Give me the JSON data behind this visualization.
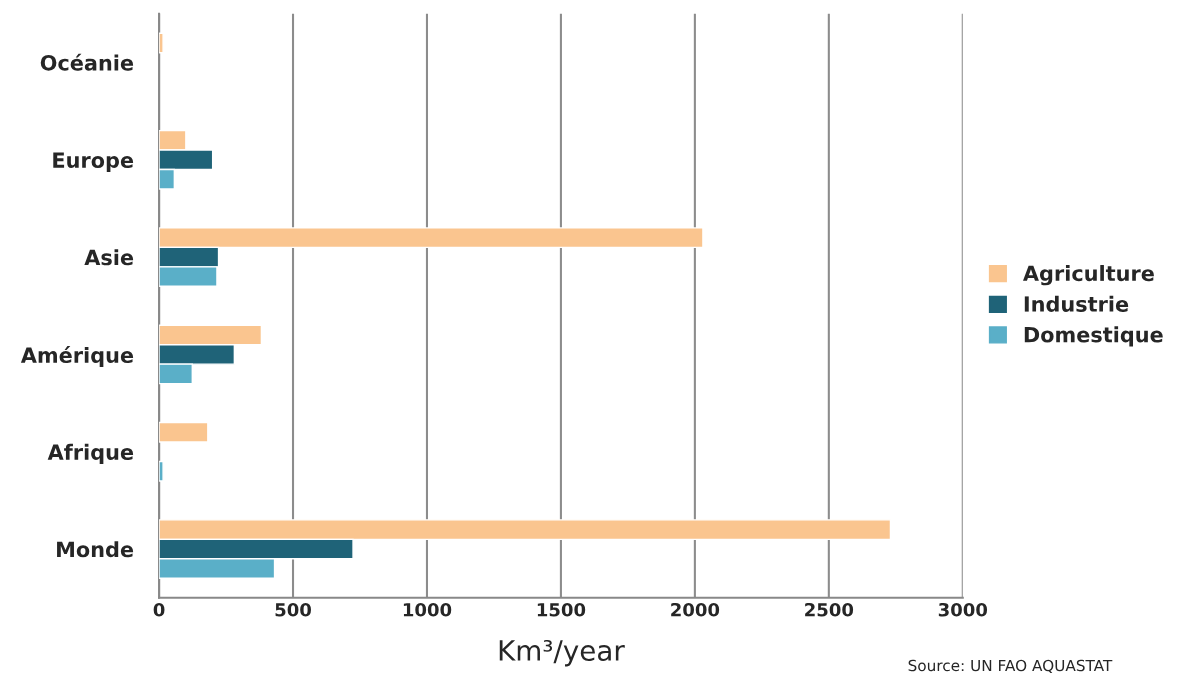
{
  "chart_data": {
    "type": "bar",
    "orientation": "horizontal",
    "xlabel": "Km³/year",
    "categories": [
      "Océanie",
      "Europe",
      "Asie",
      "Amérique",
      "Afrique",
      "Monde"
    ],
    "series": [
      {
        "name": "Agriculture",
        "color": "#fac58f",
        "values": [
          15,
          100,
          2030,
          382,
          182,
          2730
        ]
      },
      {
        "name": "Industrie",
        "color": "#1f6378",
        "values": [
          null,
          200,
          222,
          281,
          null,
          724
        ]
      },
      {
        "name": "Domestique",
        "color": "#5aafc8",
        "values": [
          null,
          57,
          216,
          124,
          15,
          431
        ]
      }
    ],
    "xlim": [
      0,
      3000
    ],
    "xticks": [
      0,
      500,
      1000,
      1500,
      2000,
      2500,
      3000
    ],
    "grid": "x",
    "legend": "right",
    "annotations": [
      "Source: UN FAO AQUASTAT"
    ]
  }
}
